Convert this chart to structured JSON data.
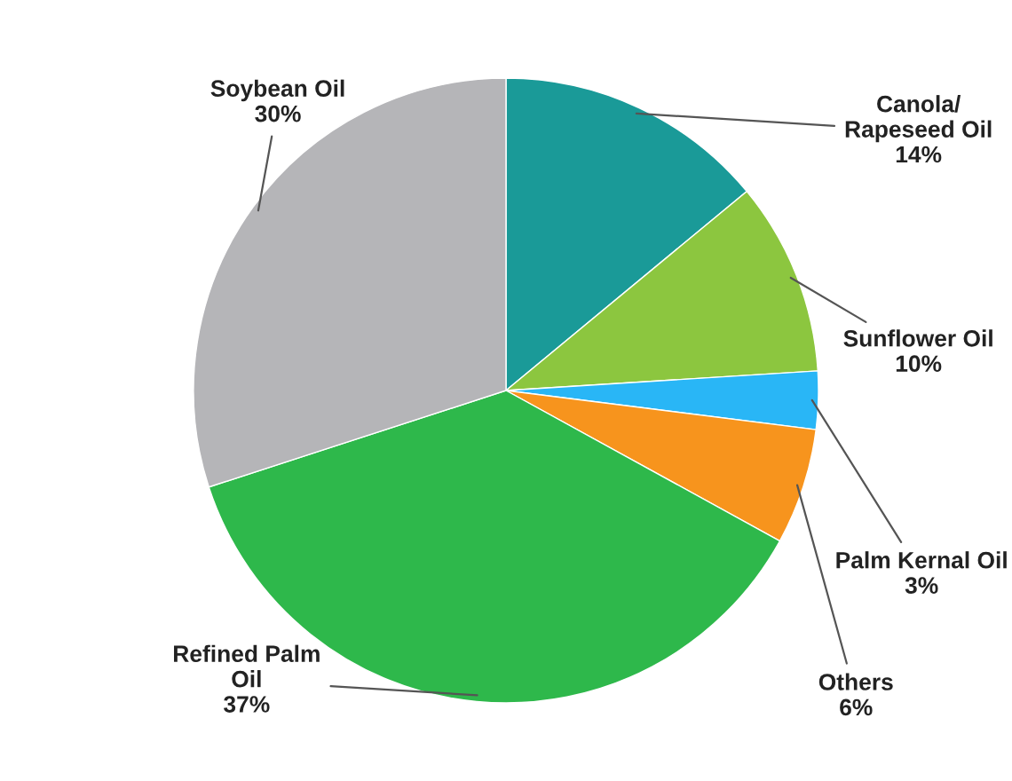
{
  "chart_data": {
    "type": "pie",
    "categories": [
      "Canola/\nRapeseed Oil",
      "Sunflower Oil",
      "Palm Kernal Oil",
      "Others",
      "Refined Palm\nOil",
      "Soybean Oil"
    ],
    "values": [
      14,
      10,
      3,
      6,
      37,
      30
    ],
    "colors": [
      "#1a9a98",
      "#8cc63f",
      "#29b6f6",
      "#f7941d",
      "#2eb84b",
      "#b5b5b8"
    ],
    "value_labels": [
      "14%",
      "10%",
      "3%",
      "6%",
      "37%",
      "30%"
    ]
  }
}
